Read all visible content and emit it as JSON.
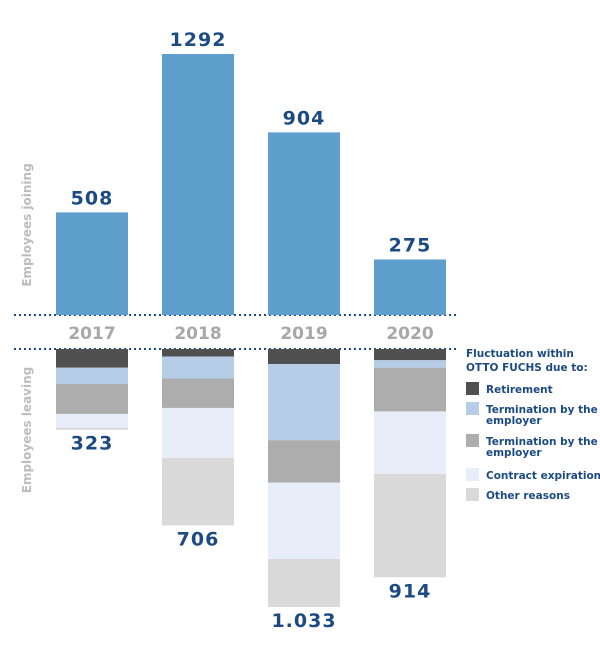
{
  "chart_data": {
    "type": "bar",
    "categories": [
      "2017",
      "2018",
      "2019",
      "2020"
    ],
    "joining": {
      "axis_label": "Employees joining",
      "values": [
        508,
        1292,
        904,
        275
      ],
      "value_labels": [
        "508",
        "1292",
        "904",
        "275"
      ],
      "color": "#5e9fce"
    },
    "leaving": {
      "axis_label": "Employees leaving",
      "totals": [
        323,
        706,
        1033,
        914
      ],
      "total_labels": [
        "323",
        "706",
        "1.033",
        "914"
      ],
      "series": [
        {
          "name": "Retirement",
          "color": "#505050",
          "values": [
            75,
            30,
            60,
            45
          ]
        },
        {
          "name": "Termination by the employer",
          "color": "#b6cde8",
          "values": [
            65,
            88,
            305,
            30
          ]
        },
        {
          "name": "Termination by the employer",
          "color": "#adadad",
          "values": [
            120,
            118,
            170,
            175
          ]
        },
        {
          "name": "Contract expiration",
          "color": "#e8eef9",
          "values": [
            55,
            200,
            305,
            250
          ]
        },
        {
          "name": "Other reasons",
          "color": "#d9d9d9",
          "values": [
            8,
            270,
            193,
            414
          ]
        }
      ]
    },
    "legend": {
      "title_lines": [
        "Fluctuation within",
        "OTTO FUCHS due to:"
      ],
      "placement": "right",
      "items": [
        {
          "lines": [
            "Retirement"
          ],
          "color": "#505050"
        },
        {
          "lines": [
            "Termination by the",
            "employer"
          ],
          "color": "#b6cde8"
        },
        {
          "lines": [
            "Termination by the",
            "employer"
          ],
          "color": "#adadad"
        },
        {
          "lines": [
            "Contract expiration"
          ],
          "color": "#e8eef9"
        },
        {
          "lines": [
            "Other reasons"
          ],
          "color": "#d9d9d9"
        }
      ]
    },
    "colors": {
      "value_text": "#1b4b82",
      "year_text": "#a8a8a8",
      "axis_label": "#bdbdbd",
      "divider": "#1b4b82"
    }
  }
}
